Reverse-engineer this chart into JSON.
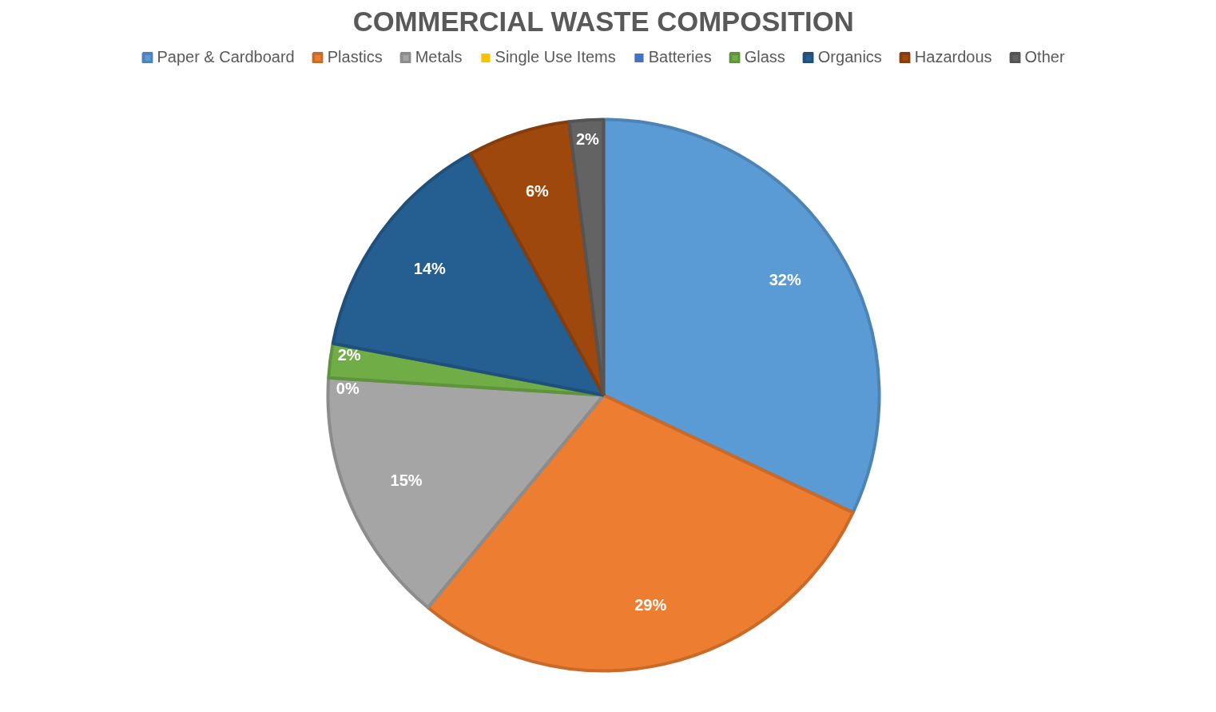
{
  "chart_data": {
    "type": "pie",
    "title": "COMMERCIAL WASTE COMPOSITION",
    "categories": [
      "Paper & Cardboard",
      "Plastics",
      "Metals",
      "Single Use Items",
      "Batteries",
      "Glass",
      "Organics",
      "Hazardous",
      "Other"
    ],
    "values": [
      32,
      29,
      15,
      0,
      0,
      2,
      14,
      6,
      2
    ],
    "colors": [
      "#5b9bd5",
      "#ed7d31",
      "#a5a5a5",
      "#ffc000",
      "#4472c4",
      "#70ad47",
      "#255e91",
      "#9e480e",
      "#636363"
    ],
    "value_labels": [
      "32%",
      "29%",
      "15%",
      "0%",
      null,
      "2%",
      "14%",
      "6%",
      "2%"
    ],
    "legend": "top"
  }
}
